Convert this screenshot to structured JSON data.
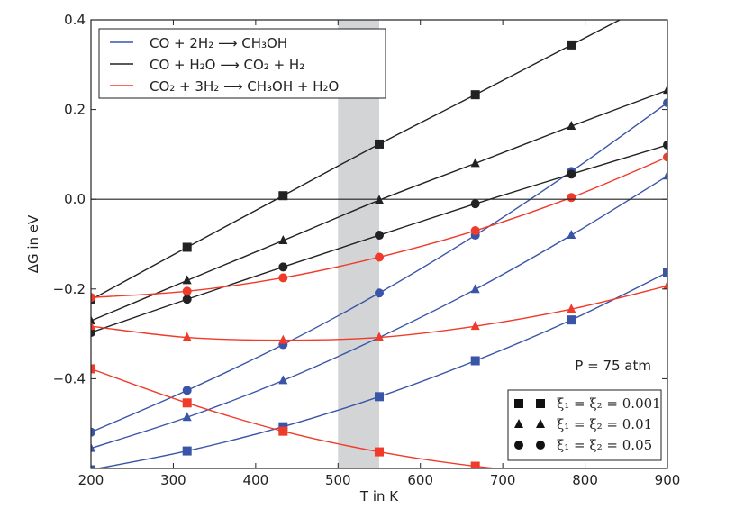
{
  "chart_data": {
    "type": "line",
    "title": "",
    "xlabel": "T in K",
    "ylabel": "ΔG in eV",
    "xlim": [
      200,
      900
    ],
    "ylim": [
      -0.6,
      0.4
    ],
    "xticks": [
      200,
      300,
      400,
      500,
      600,
      700,
      800,
      900
    ],
    "xtick_labels": [
      "200",
      "300",
      "400",
      "500",
      "600",
      "700",
      "800",
      "900"
    ],
    "yticks": [
      -0.4,
      -0.2,
      0.0,
      0.2,
      0.4
    ],
    "ytick_labels": [
      "−0.4",
      "−0.2",
      "0.0",
      "0.2",
      "0.4"
    ],
    "grid": false,
    "shaded_band": {
      "x": [
        500,
        550
      ],
      "color": "#d3d4d6"
    },
    "reference_line_y": 0.0,
    "annotation": "P = 75 atm",
    "x": [
      200,
      316.7,
      433.3,
      550,
      666.7,
      783.3,
      900
    ],
    "reaction_legend": {
      "placement": "top-left",
      "entries": [
        {
          "label": "CO + 2H₂ ⟶ CH₃OH",
          "color": "#3a55a8"
        },
        {
          "label": "CO + H₂O ⟶ CO₂ + H₂",
          "color": "#222222"
        },
        {
          "label": "CO₂ + 3H₂ ⟶ CH₃OH + H₂O",
          "color": "#f03a2a"
        }
      ]
    },
    "marker_legend": {
      "placement": "bottom-right",
      "entries": [
        {
          "marker": "square",
          "label": "ξ₁ = ξ₂ = 0.001"
        },
        {
          "marker": "triangle",
          "label": "ξ₁ = ξ₂ = 0.01"
        },
        {
          "marker": "circle",
          "label": "ξ₁ = ξ₂ = 0.05"
        }
      ]
    },
    "series": [
      {
        "name": "CO + 2H2 -> CH3OH, ξ=0.001",
        "reaction": 0,
        "marker": "square",
        "values": [
          -0.603,
          -0.561,
          -0.507,
          -0.44,
          -0.36,
          -0.269,
          -0.163
        ]
      },
      {
        "name": "CO + 2H2 -> CH3OH, ξ=0.01",
        "reaction": 0,
        "marker": "triangle",
        "values": [
          -0.555,
          -0.486,
          -0.404,
          -0.308,
          -0.201,
          -0.08,
          0.052
        ]
      },
      {
        "name": "CO + 2H2 -> CH3OH, ξ=0.05",
        "reaction": 0,
        "marker": "circle",
        "values": [
          -0.519,
          -0.426,
          -0.324,
          -0.209,
          -0.08,
          0.062,
          0.215
        ]
      },
      {
        "name": "CO + H2O -> CO2 + H2, ξ=0.001",
        "reaction": 1,
        "marker": "square",
        "values": [
          -0.224,
          -0.107,
          0.008,
          0.123,
          0.233,
          0.344,
          0.455
        ]
      },
      {
        "name": "CO + H2O -> CO2 + H2, ξ=0.01",
        "reaction": 1,
        "marker": "triangle",
        "values": [
          -0.271,
          -0.181,
          -0.092,
          -0.002,
          0.08,
          0.163,
          0.243
        ]
      },
      {
        "name": "CO + H2O -> CO2 + H2, ξ=0.05",
        "reaction": 1,
        "marker": "circle",
        "values": [
          -0.297,
          -0.223,
          -0.151,
          -0.08,
          -0.01,
          0.056,
          0.121
        ]
      },
      {
        "name": "CO2 + 3H2 -> CH3OH + H2O, ξ=0.001",
        "reaction": 2,
        "marker": "square",
        "values": [
          -0.378,
          -0.454,
          -0.517,
          -0.563,
          -0.595,
          -0.613,
          -0.617
        ]
      },
      {
        "name": "CO2 + 3H2 -> CH3OH + H2O, ξ=0.01",
        "reaction": 2,
        "marker": "triangle",
        "values": [
          -0.283,
          -0.308,
          -0.314,
          -0.308,
          -0.283,
          -0.245,
          -0.193
        ]
      },
      {
        "name": "CO2 + 3H2 -> CH3OH + H2O, ξ=0.05",
        "reaction": 2,
        "marker": "circle",
        "values": [
          -0.219,
          -0.205,
          -0.175,
          -0.129,
          -0.07,
          0.004,
          0.094
        ]
      }
    ]
  }
}
